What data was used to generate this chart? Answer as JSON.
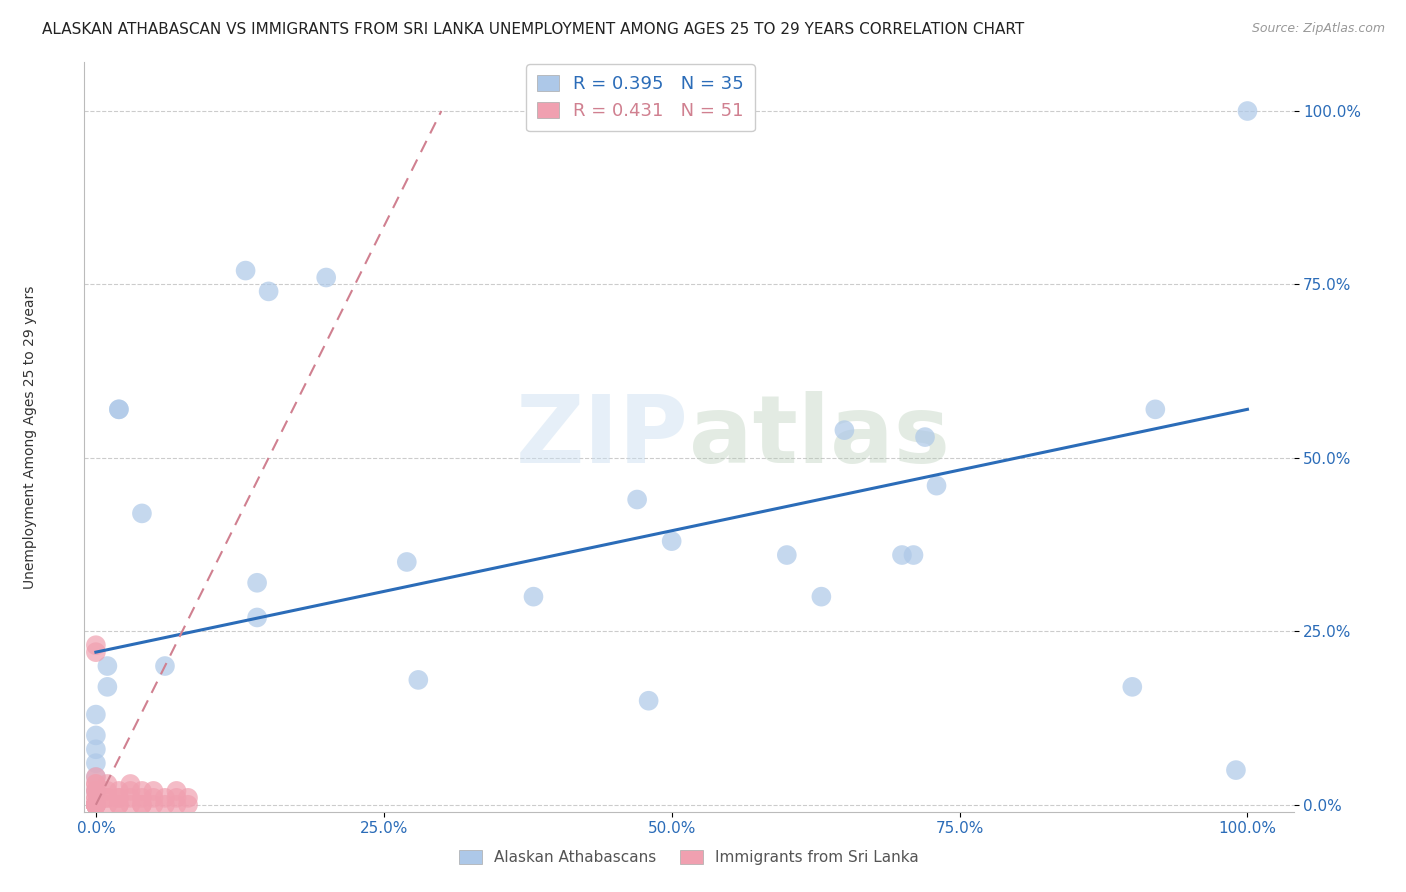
{
  "title": "ALASKAN ATHABASCAN VS IMMIGRANTS FROM SRI LANKA UNEMPLOYMENT AMONG AGES 25 TO 29 YEARS CORRELATION CHART",
  "source": "Source: ZipAtlas.com",
  "xlabel_ticks": [
    "0.0%",
    "25.0%",
    "50.0%",
    "75.0%",
    "100.0%"
  ],
  "xlabel_tick_vals": [
    0.0,
    0.25,
    0.5,
    0.75,
    1.0
  ],
  "ylabel_ticks": [
    "0.0%",
    "25.0%",
    "50.0%",
    "75.0%",
    "100.0%"
  ],
  "ylabel_tick_vals": [
    0.0,
    0.25,
    0.5,
    0.75,
    1.0
  ],
  "ylabel": "Unemployment Among Ages 25 to 29 years",
  "watermark": "ZIPatlas",
  "blue_scatter_x": [
    0.02,
    0.02,
    0.04,
    0.06,
    0.01,
    0.01,
    0.0,
    0.0,
    0.0,
    0.0,
    0.0,
    0.0,
    0.0,
    0.13,
    0.15,
    0.2,
    0.14,
    0.14,
    0.27,
    0.28,
    0.38,
    0.5,
    0.6,
    0.63,
    0.65,
    0.72,
    0.73,
    0.9,
    0.92,
    0.7,
    0.71,
    0.99,
    1.0,
    0.47,
    0.48
  ],
  "blue_scatter_y": [
    0.57,
    0.57,
    0.42,
    0.2,
    0.2,
    0.17,
    0.13,
    0.1,
    0.08,
    0.06,
    0.04,
    0.02,
    0.0,
    0.77,
    0.74,
    0.76,
    0.32,
    0.27,
    0.35,
    0.18,
    0.3,
    0.38,
    0.36,
    0.3,
    0.54,
    0.53,
    0.46,
    0.17,
    0.57,
    0.36,
    0.36,
    0.05,
    1.0,
    0.44,
    0.15
  ],
  "pink_scatter_x": [
    0.0,
    0.0,
    0.0,
    0.0,
    0.0,
    0.0,
    0.0,
    0.0,
    0.0,
    0.0,
    0.0,
    0.0,
    0.0,
    0.0,
    0.0,
    0.0,
    0.0,
    0.0,
    0.0,
    0.0,
    0.0,
    0.0,
    0.0,
    0.01,
    0.01,
    0.01,
    0.01,
    0.01,
    0.02,
    0.02,
    0.02,
    0.02,
    0.02,
    0.03,
    0.03,
    0.03,
    0.03,
    0.04,
    0.04,
    0.04,
    0.04,
    0.05,
    0.05,
    0.05,
    0.06,
    0.06,
    0.07,
    0.07,
    0.07,
    0.08,
    0.08
  ],
  "pink_scatter_y": [
    0.0,
    0.0,
    0.0,
    0.0,
    0.0,
    0.0,
    0.0,
    0.0,
    0.0,
    0.0,
    0.0,
    0.0,
    0.0,
    0.0,
    0.01,
    0.01,
    0.02,
    0.02,
    0.03,
    0.03,
    0.04,
    0.22,
    0.23,
    0.0,
    0.01,
    0.01,
    0.02,
    0.03,
    0.0,
    0.0,
    0.01,
    0.01,
    0.02,
    0.0,
    0.01,
    0.02,
    0.03,
    0.0,
    0.0,
    0.01,
    0.02,
    0.0,
    0.01,
    0.02,
    0.0,
    0.01,
    0.0,
    0.01,
    0.02,
    0.0,
    0.01
  ],
  "blue_R": 0.395,
  "blue_N": 35,
  "pink_R": 0.431,
  "pink_N": 51,
  "blue_line_x": [
    0.0,
    1.0
  ],
  "blue_line_y": [
    0.22,
    0.57
  ],
  "pink_line_x": [
    0.0,
    0.3
  ],
  "pink_line_y": [
    0.0,
    1.0
  ],
  "blue_color": "#adc8e8",
  "blue_line_color": "#2b6cb8",
  "pink_color": "#f0a0b0",
  "pink_line_color": "#d08090",
  "background_color": "#ffffff",
  "grid_color": "#cccccc",
  "title_fontsize": 11,
  "axis_label_fontsize": 10,
  "tick_fontsize": 11,
  "legend_fontsize": 13
}
